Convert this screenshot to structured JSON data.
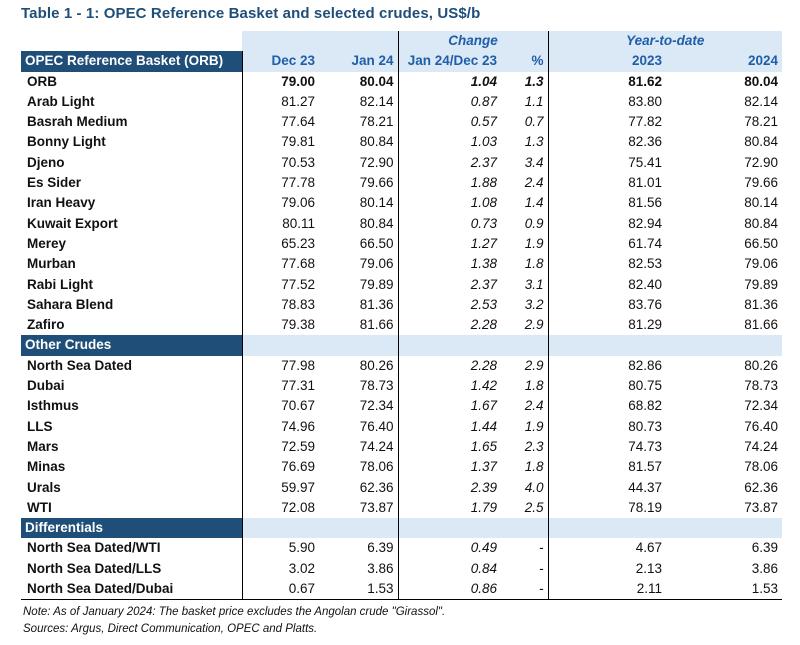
{
  "title": "Table 1 - 1: OPEC Reference Basket and selected crudes, US$/b",
  "header": {
    "change_label": "Change",
    "ytd_label": "Year-to-date",
    "row_header": "OPEC Reference Basket (ORB)",
    "columns": [
      "Dec 23",
      "Jan 24",
      "Jan 24/Dec 23",
      "%",
      "2023",
      "2024"
    ]
  },
  "basket_rows": [
    {
      "name": "ORB",
      "dec23": "79.00",
      "jan24": "80.04",
      "chg": "1.04",
      "pct": "1.3",
      "y2023": "81.62",
      "y2024": "80.04"
    },
    {
      "name": "Arab Light",
      "dec23": "81.27",
      "jan24": "82.14",
      "chg": "0.87",
      "pct": "1.1",
      "y2023": "83.80",
      "y2024": "82.14"
    },
    {
      "name": "Basrah Medium",
      "dec23": "77.64",
      "jan24": "78.21",
      "chg": "0.57",
      "pct": "0.7",
      "y2023": "77.82",
      "y2024": "78.21"
    },
    {
      "name": "Bonny Light",
      "dec23": "79.81",
      "jan24": "80.84",
      "chg": "1.03",
      "pct": "1.3",
      "y2023": "82.36",
      "y2024": "80.84"
    },
    {
      "name": "Djeno",
      "dec23": "70.53",
      "jan24": "72.90",
      "chg": "2.37",
      "pct": "3.4",
      "y2023": "75.41",
      "y2024": "72.90"
    },
    {
      "name": "Es Sider",
      "dec23": "77.78",
      "jan24": "79.66",
      "chg": "1.88",
      "pct": "2.4",
      "y2023": "81.01",
      "y2024": "79.66"
    },
    {
      "name": "Iran Heavy",
      "dec23": "79.06",
      "jan24": "80.14",
      "chg": "1.08",
      "pct": "1.4",
      "y2023": "81.56",
      "y2024": "80.14"
    },
    {
      "name": "Kuwait Export",
      "dec23": "80.11",
      "jan24": "80.84",
      "chg": "0.73",
      "pct": "0.9",
      "y2023": "82.94",
      "y2024": "80.84"
    },
    {
      "name": "Merey",
      "dec23": "65.23",
      "jan24": "66.50",
      "chg": "1.27",
      "pct": "1.9",
      "y2023": "61.74",
      "y2024": "66.50"
    },
    {
      "name": "Murban",
      "dec23": "77.68",
      "jan24": "79.06",
      "chg": "1.38",
      "pct": "1.8",
      "y2023": "82.53",
      "y2024": "79.06"
    },
    {
      "name": "Rabi Light",
      "dec23": "77.52",
      "jan24": "79.89",
      "chg": "2.37",
      "pct": "3.1",
      "y2023": "82.40",
      "y2024": "79.89"
    },
    {
      "name": "Sahara Blend",
      "dec23": "78.83",
      "jan24": "81.36",
      "chg": "2.53",
      "pct": "3.2",
      "y2023": "83.76",
      "y2024": "81.36"
    },
    {
      "name": "Zafiro",
      "dec23": "79.38",
      "jan24": "81.66",
      "chg": "2.28",
      "pct": "2.9",
      "y2023": "81.29",
      "y2024": "81.66"
    }
  ],
  "other_section": "Other Crudes",
  "other_rows": [
    {
      "name": "North Sea Dated",
      "dec23": "77.98",
      "jan24": "80.26",
      "chg": "2.28",
      "pct": "2.9",
      "y2023": "82.86",
      "y2024": "80.26"
    },
    {
      "name": "Dubai",
      "dec23": "77.31",
      "jan24": "78.73",
      "chg": "1.42",
      "pct": "1.8",
      "y2023": "80.75",
      "y2024": "78.73"
    },
    {
      "name": "Isthmus",
      "dec23": "70.67",
      "jan24": "72.34",
      "chg": "1.67",
      "pct": "2.4",
      "y2023": "68.82",
      "y2024": "72.34"
    },
    {
      "name": "LLS",
      "dec23": "74.96",
      "jan24": "76.40",
      "chg": "1.44",
      "pct": "1.9",
      "y2023": "80.73",
      "y2024": "76.40"
    },
    {
      "name": "Mars",
      "dec23": "72.59",
      "jan24": "74.24",
      "chg": "1.65",
      "pct": "2.3",
      "y2023": "74.73",
      "y2024": "74.24"
    },
    {
      "name": "Minas",
      "dec23": "76.69",
      "jan24": "78.06",
      "chg": "1.37",
      "pct": "1.8",
      "y2023": "81.57",
      "y2024": "78.06"
    },
    {
      "name": "Urals",
      "dec23": "59.97",
      "jan24": "62.36",
      "chg": "2.39",
      "pct": "4.0",
      "y2023": "44.37",
      "y2024": "62.36"
    },
    {
      "name": "WTI",
      "dec23": "72.08",
      "jan24": "73.87",
      "chg": "1.79",
      "pct": "2.5",
      "y2023": "78.19",
      "y2024": "73.87"
    }
  ],
  "diff_section": "Differentials",
  "diff_rows": [
    {
      "name": "North Sea Dated/WTI",
      "dec23": "5.90",
      "jan24": "6.39",
      "chg": "0.49",
      "pct": "-",
      "y2023": "4.67",
      "y2024": "6.39"
    },
    {
      "name": "North Sea Dated/LLS",
      "dec23": "3.02",
      "jan24": "3.86",
      "chg": "0.84",
      "pct": "-",
      "y2023": "2.13",
      "y2024": "3.86"
    },
    {
      "name": "North Sea Dated/Dubai",
      "dec23": "0.67",
      "jan24": "1.53",
      "chg": "0.86",
      "pct": "-",
      "y2023": "2.11",
      "y2024": "1.53"
    }
  ],
  "notes": {
    "note": "Note: As of January 2024: The basket price excludes the Angolan crude \"Girassol\".",
    "sources": "Sources:  Argus, Direct Communication, OPEC and Platts."
  }
}
